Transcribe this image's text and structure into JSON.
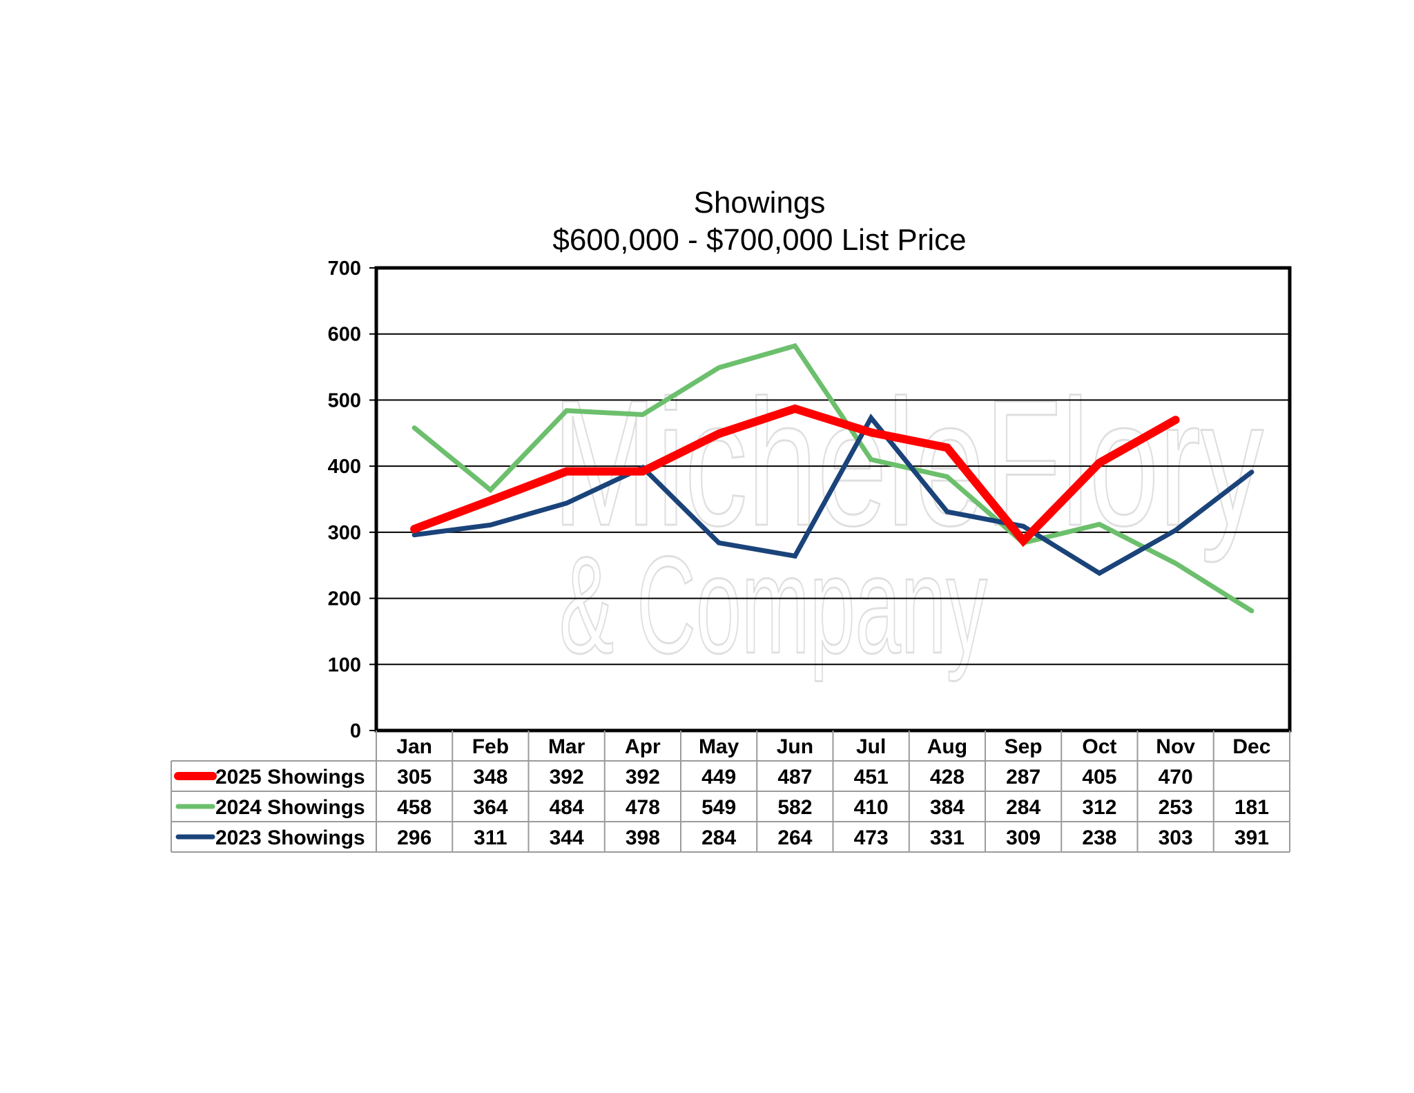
{
  "chart_data": {
    "type": "line",
    "title": "Showings",
    "subtitle": "$600,000 - $700,000 List Price",
    "xlabel": "",
    "ylabel": "",
    "ylim": [
      0,
      700
    ],
    "yticks": [
      0,
      100,
      200,
      300,
      400,
      500,
      600,
      700
    ],
    "grid": true,
    "legend": "data-table-below",
    "categories": [
      "Jan",
      "Feb",
      "Mar",
      "Apr",
      "May",
      "Jun",
      "Jul",
      "Aug",
      "Sep",
      "Oct",
      "Nov",
      "Dec"
    ],
    "series": [
      {
        "name": "2025 Showings",
        "color": "#ff0000",
        "values": [
          305,
          348,
          392,
          392,
          449,
          487,
          451,
          428,
          287,
          405,
          470,
          null
        ]
      },
      {
        "name": "2024 Showings",
        "color": "#6cbf6c",
        "values": [
          458,
          364,
          484,
          478,
          549,
          582,
          410,
          384,
          284,
          312,
          253,
          181
        ]
      },
      {
        "name": "2023 Showings",
        "color": "#1a437a",
        "values": [
          296,
          311,
          344,
          398,
          284,
          264,
          473,
          331,
          309,
          238,
          303,
          391
        ]
      }
    ]
  },
  "watermark": {
    "line1": "MicheleFlory",
    "line2": "& Company"
  }
}
